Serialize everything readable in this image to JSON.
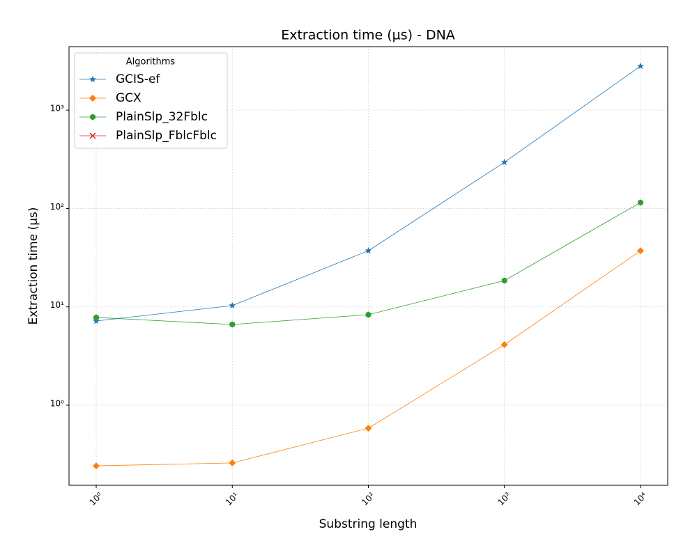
{
  "chart_data": {
    "type": "line",
    "title": "Extraction time (µs) - DNA",
    "xlabel": "Substring length",
    "ylabel": "Extraction time (µs)",
    "x": [
      1,
      10,
      100,
      1000,
      10000
    ],
    "xlog": true,
    "ylog": true,
    "grid": true,
    "legend_title": "Algorithms",
    "legend_position": "upper-left",
    "xlim": [
      0.631,
      15849
    ],
    "ylim": [
      0.1535,
      4416
    ],
    "xticks": [
      {
        "value": 1,
        "label": "10⁰"
      },
      {
        "value": 10,
        "label": "10¹"
      },
      {
        "value": 100,
        "label": "10²"
      },
      {
        "value": 1000,
        "label": "10³"
      },
      {
        "value": 10000,
        "label": "10⁴"
      }
    ],
    "yticks": [
      {
        "value": 1,
        "label": "10⁰"
      },
      {
        "value": 10,
        "label": "10¹"
      },
      {
        "value": 100,
        "label": "10²"
      },
      {
        "value": 1000,
        "label": "10³"
      }
    ],
    "series": [
      {
        "name": "GCIS-ef",
        "color": "#1f77b4",
        "marker": "star",
        "values": [
          7.18,
          10.3,
          37.2,
          295,
          2800
        ]
      },
      {
        "name": "GCX",
        "color": "#ff7f0e",
        "marker": "diamond",
        "values": [
          0.242,
          0.259,
          0.584,
          4.13,
          37.2
        ]
      },
      {
        "name": "PlainSlp_32Fblc",
        "color": "#2ca02c",
        "marker": "hexagon",
        "values": [
          7.8,
          6.62,
          8.32,
          18.5,
          115
        ]
      },
      {
        "name": "PlainSlp_FblcFblc",
        "color": "#d62728",
        "marker": "x",
        "values": [
          null,
          null,
          null,
          null,
          null
        ]
      }
    ]
  }
}
